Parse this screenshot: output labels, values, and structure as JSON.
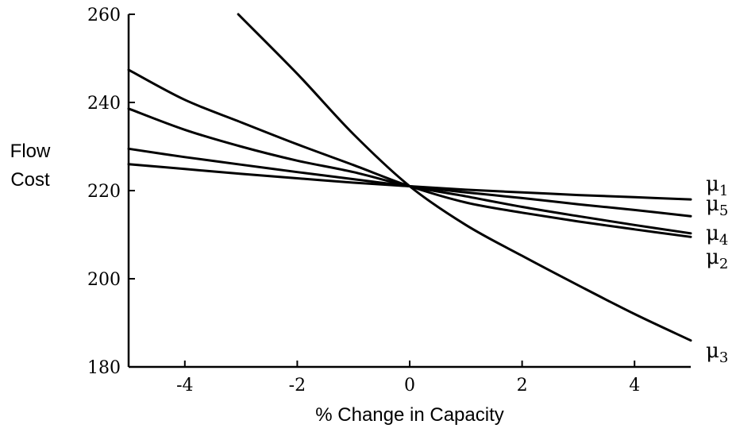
{
  "chart_data": {
    "type": "line",
    "title": "",
    "xlabel": "% Change in Capacity",
    "ylabel": "Flow Cost",
    "xlim": [
      -5,
      5
    ],
    "ylim": [
      180,
      260
    ],
    "x_ticks": [
      -4,
      -2,
      0,
      2,
      4
    ],
    "y_ticks": [
      180,
      200,
      220,
      240,
      260
    ],
    "x_tick_labels": [
      "-4",
      "-2",
      "0",
      "2",
      "4"
    ],
    "y_tick_labels": [
      "180",
      "200",
      "220",
      "240",
      "260"
    ],
    "grid": false,
    "legend": "inline-right",
    "series": [
      {
        "name": "μ1",
        "label_main": "μ",
        "label_sub": "1",
        "x": [
          -5,
          -4,
          -3,
          -2,
          -1,
          0,
          1,
          2,
          3,
          4,
          5
        ],
        "y": [
          226,
          224.9,
          223.8,
          222.8,
          221.8,
          221,
          220.2,
          219.6,
          219,
          218.5,
          218
        ]
      },
      {
        "name": "μ5",
        "label_main": "μ",
        "label_sub": "5",
        "x": [
          -5,
          -4,
          -3,
          -2,
          -1,
          0,
          1,
          2,
          3,
          4,
          5
        ],
        "y": [
          229.5,
          227.6,
          225.9,
          224.2,
          222.6,
          221,
          219.6,
          218.3,
          216.9,
          215.6,
          214.2
        ]
      },
      {
        "name": "μ4",
        "label_main": "μ",
        "label_sub": "4",
        "x": [
          -5,
          -4,
          -3,
          -2,
          -1,
          0,
          1,
          2,
          3,
          4,
          5
        ],
        "y": [
          238.6,
          233.8,
          230,
          226.8,
          224.2,
          221,
          218.7,
          216.3,
          214.2,
          212.2,
          210.3
        ]
      },
      {
        "name": "μ2",
        "label_main": "μ",
        "label_sub": "2",
        "x": [
          -5,
          -4,
          -3,
          -2,
          -1,
          0,
          1,
          2,
          3,
          4,
          5
        ],
        "y": [
          247.4,
          240.6,
          235.5,
          230.5,
          225.8,
          221,
          217.3,
          215,
          213,
          211.2,
          209.5
        ]
      },
      {
        "name": "μ3",
        "label_main": "μ",
        "label_sub": "3",
        "x": [
          -3.05,
          -2,
          -1,
          0,
          1,
          2,
          3,
          4,
          5
        ],
        "y": [
          260,
          246.5,
          232.8,
          221,
          212.2,
          205.2,
          198.5,
          192,
          186
        ]
      }
    ]
  }
}
